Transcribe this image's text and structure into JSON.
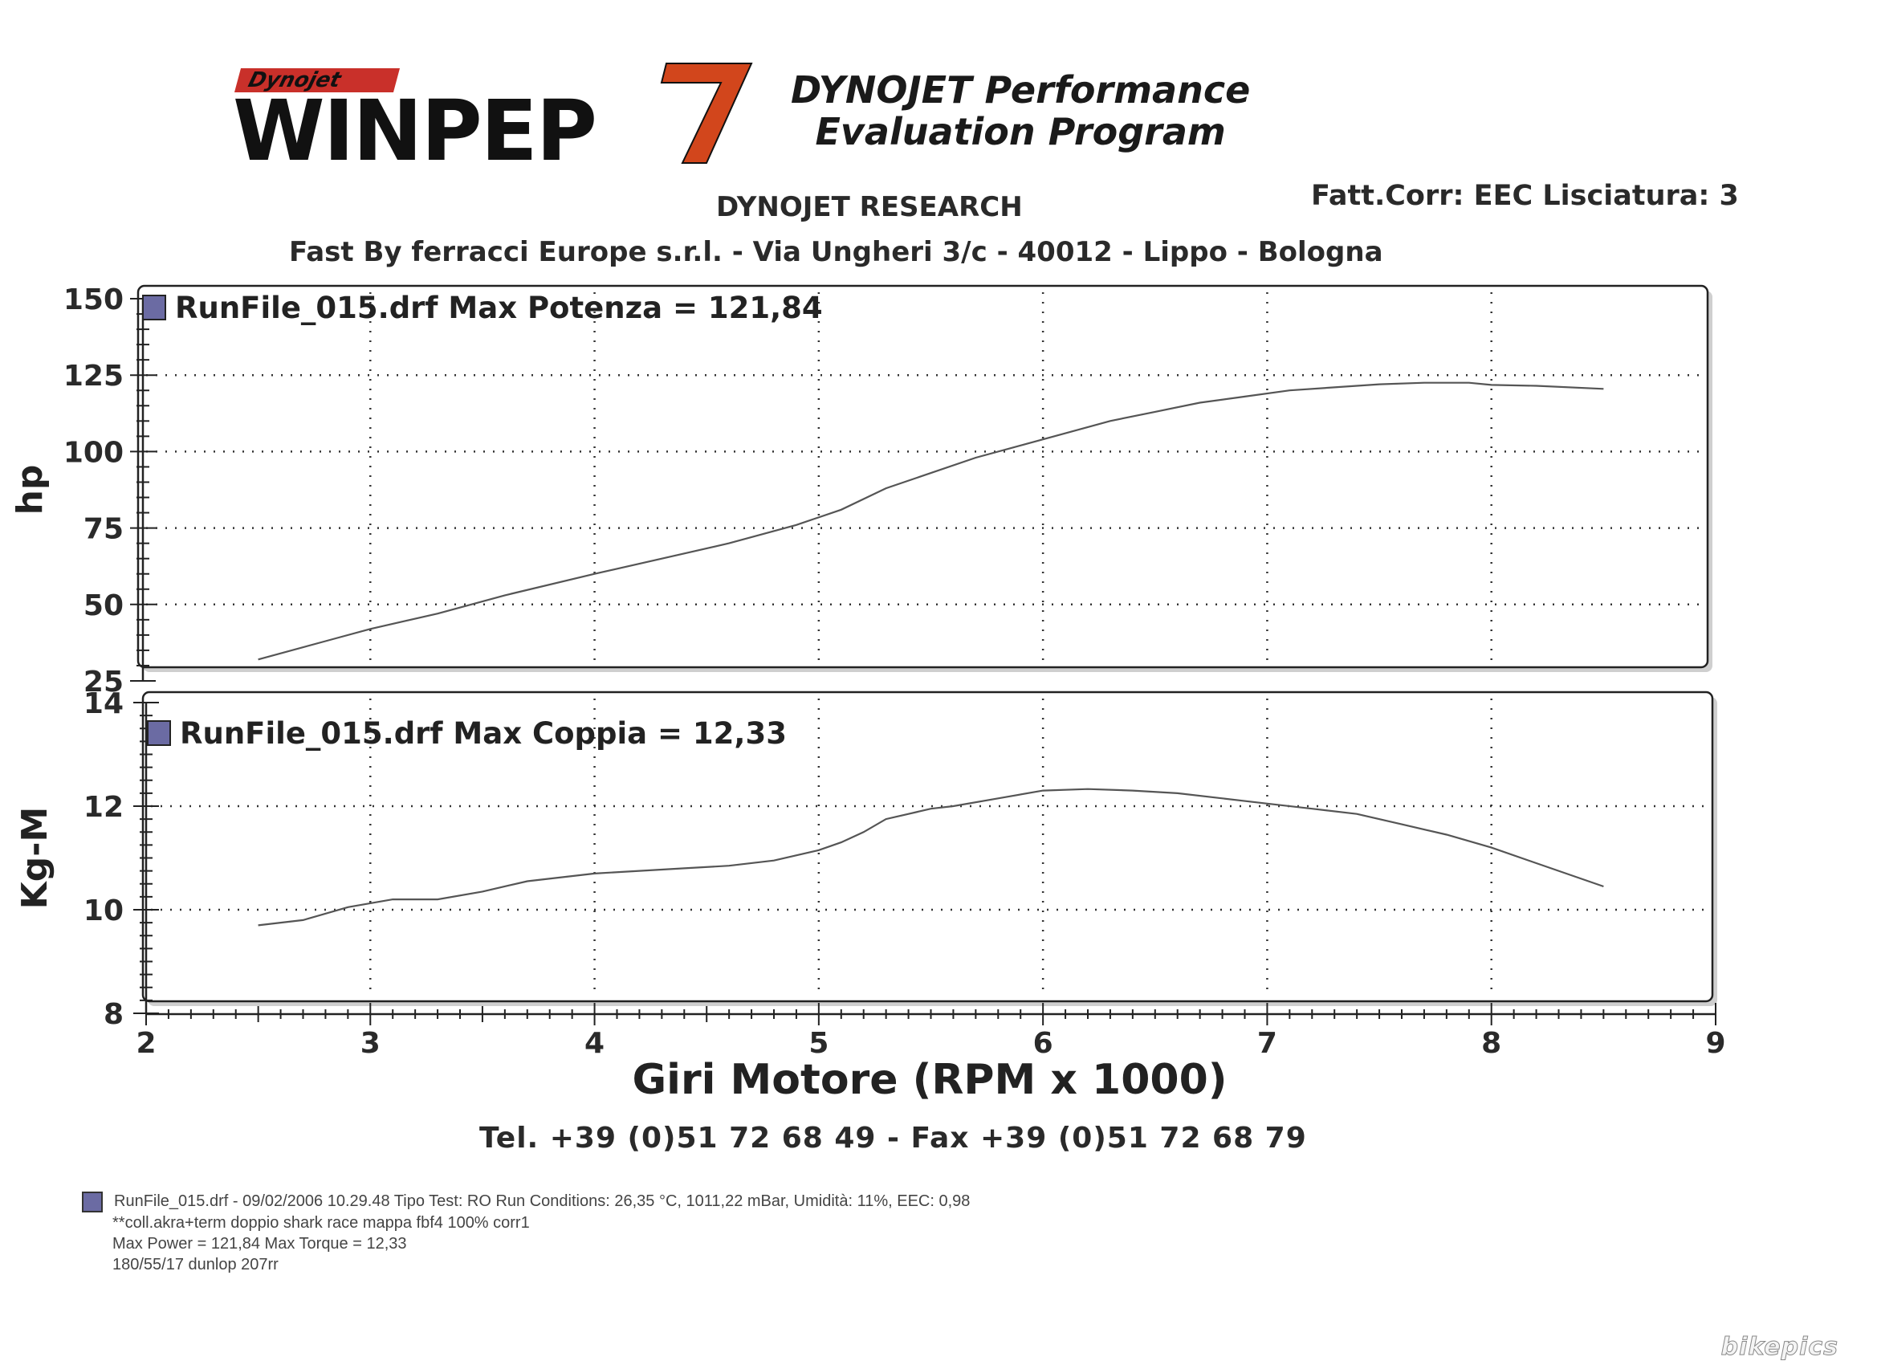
{
  "header": {
    "logo_small": "Dynojet",
    "logo_main": "WINPEP",
    "logo_seven": "7",
    "program_title_line1": "DYNOJET Performance",
    "program_title_line2": "Evaluation Program",
    "research": "DYNOJET RESEARCH",
    "correction": "Fatt.Corr: EEC  Lisciatura: 3",
    "company": "Fast By ferracci Europe s.r.l. - Via Ungheri 3/c - 40012 - Lippo - Bologna",
    "contact": "Tel. +39 (0)51 72 68 49 - Fax +39 (0)51 72 68 79"
  },
  "chart_data": [
    {
      "type": "line",
      "title": "RunFile_015.drf Max Potenza = 121,84",
      "xlabel": "Giri Motore (RPM x 1000)",
      "ylabel": "hp",
      "xlim": [
        2,
        9
      ],
      "ylim": [
        25,
        150
      ],
      "yticks": [
        "150",
        "125",
        "100",
        "75",
        "50",
        "25"
      ],
      "grid": true,
      "series": [
        {
          "name": "RunFile_015.drf",
          "color": "#555555",
          "x": [
            2.5,
            2.8,
            3.0,
            3.3,
            3.6,
            4.0,
            4.3,
            4.6,
            4.9,
            5.1,
            5.3,
            5.5,
            5.7,
            5.9,
            6.1,
            6.3,
            6.5,
            6.7,
            6.9,
            7.1,
            7.3,
            7.5,
            7.7,
            7.9,
            8.0,
            8.2,
            8.5
          ],
          "y": [
            32,
            38,
            42,
            47,
            53,
            60,
            65,
            70,
            76,
            81,
            88,
            93,
            98,
            102,
            106,
            110,
            113,
            116,
            118,
            120,
            121,
            122,
            122.5,
            122.5,
            121.8,
            121.5,
            120.5
          ]
        }
      ]
    },
    {
      "type": "line",
      "title": "RunFile_015.drf Max Coppia = 12,33",
      "xlabel": "Giri Motore (RPM x 1000)",
      "ylabel": "Kg-M",
      "xlim": [
        2,
        9
      ],
      "ylim": [
        8,
        14
      ],
      "yticks": [
        "14",
        "12",
        "10",
        "8"
      ],
      "xticks": [
        "2",
        "3",
        "4",
        "5",
        "6",
        "7",
        "8",
        "9"
      ],
      "grid": true,
      "series": [
        {
          "name": "RunFile_015.drf",
          "color": "#555555",
          "x": [
            2.5,
            2.7,
            2.9,
            3.1,
            3.3,
            3.5,
            3.7,
            4.0,
            4.2,
            4.4,
            4.6,
            4.8,
            5.0,
            5.1,
            5.2,
            5.3,
            5.4,
            5.5,
            5.6,
            5.8,
            6.0,
            6.2,
            6.4,
            6.6,
            6.8,
            7.0,
            7.2,
            7.4,
            7.6,
            7.8,
            8.0,
            8.2,
            8.5
          ],
          "y": [
            9.7,
            9.8,
            10.05,
            10.2,
            10.2,
            10.35,
            10.55,
            10.7,
            10.75,
            10.8,
            10.85,
            10.95,
            11.15,
            11.3,
            11.5,
            11.75,
            11.85,
            11.95,
            12.0,
            12.15,
            12.3,
            12.33,
            12.3,
            12.25,
            12.15,
            12.05,
            11.95,
            11.85,
            11.65,
            11.45,
            11.2,
            10.9,
            10.45
          ]
        }
      ]
    }
  ],
  "footer": {
    "line1": "RunFile_015.drf - 09/02/2006 10.29.48  Tipo Test: RO  Run Conditions: 26,35 °C, 1011,22 mBar,  Umidità: 11%, EEC: 0,98",
    "line2": "**coll.akra+term doppio shark race mappa fbf4 100% corr1",
    "line3": "Max Power = 121,84  Max Torque = 12,33",
    "line4": "180/55/17 dunlop 207rr"
  },
  "watermark": "bikepics"
}
